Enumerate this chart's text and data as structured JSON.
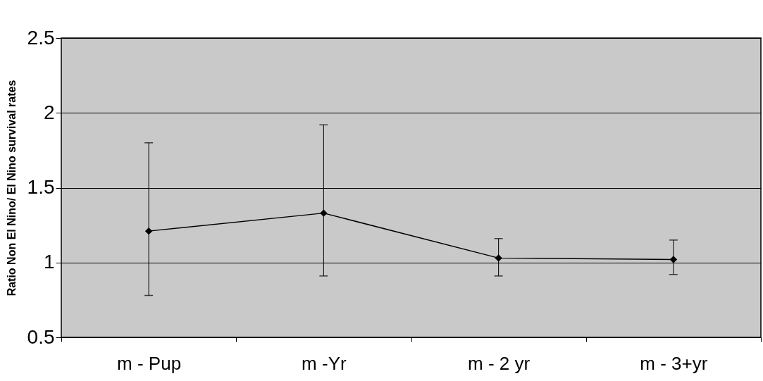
{
  "chart_data": {
    "type": "line",
    "ylabel": "Ratio Non El Nino/ El Nino survival rates",
    "categories": [
      "m - Pup",
      "m -Yr",
      "m - 2 yr",
      "m - 3+yr"
    ],
    "series": [
      {
        "color": "#000000",
        "values": [
          1.21,
          1.33,
          1.03,
          1.02
        ],
        "errors": [
          [
            0.78,
            1.8
          ],
          [
            0.91,
            1.92
          ],
          [
            0.91,
            1.16
          ],
          [
            0.92,
            1.15
          ]
        ]
      }
    ],
    "ylim": [
      0.5,
      2.5
    ],
    "yticks": [
      0.5,
      1,
      1.5,
      2,
      2.5
    ],
    "grid": "y",
    "marker": "diamond",
    "line_style": "solid"
  }
}
